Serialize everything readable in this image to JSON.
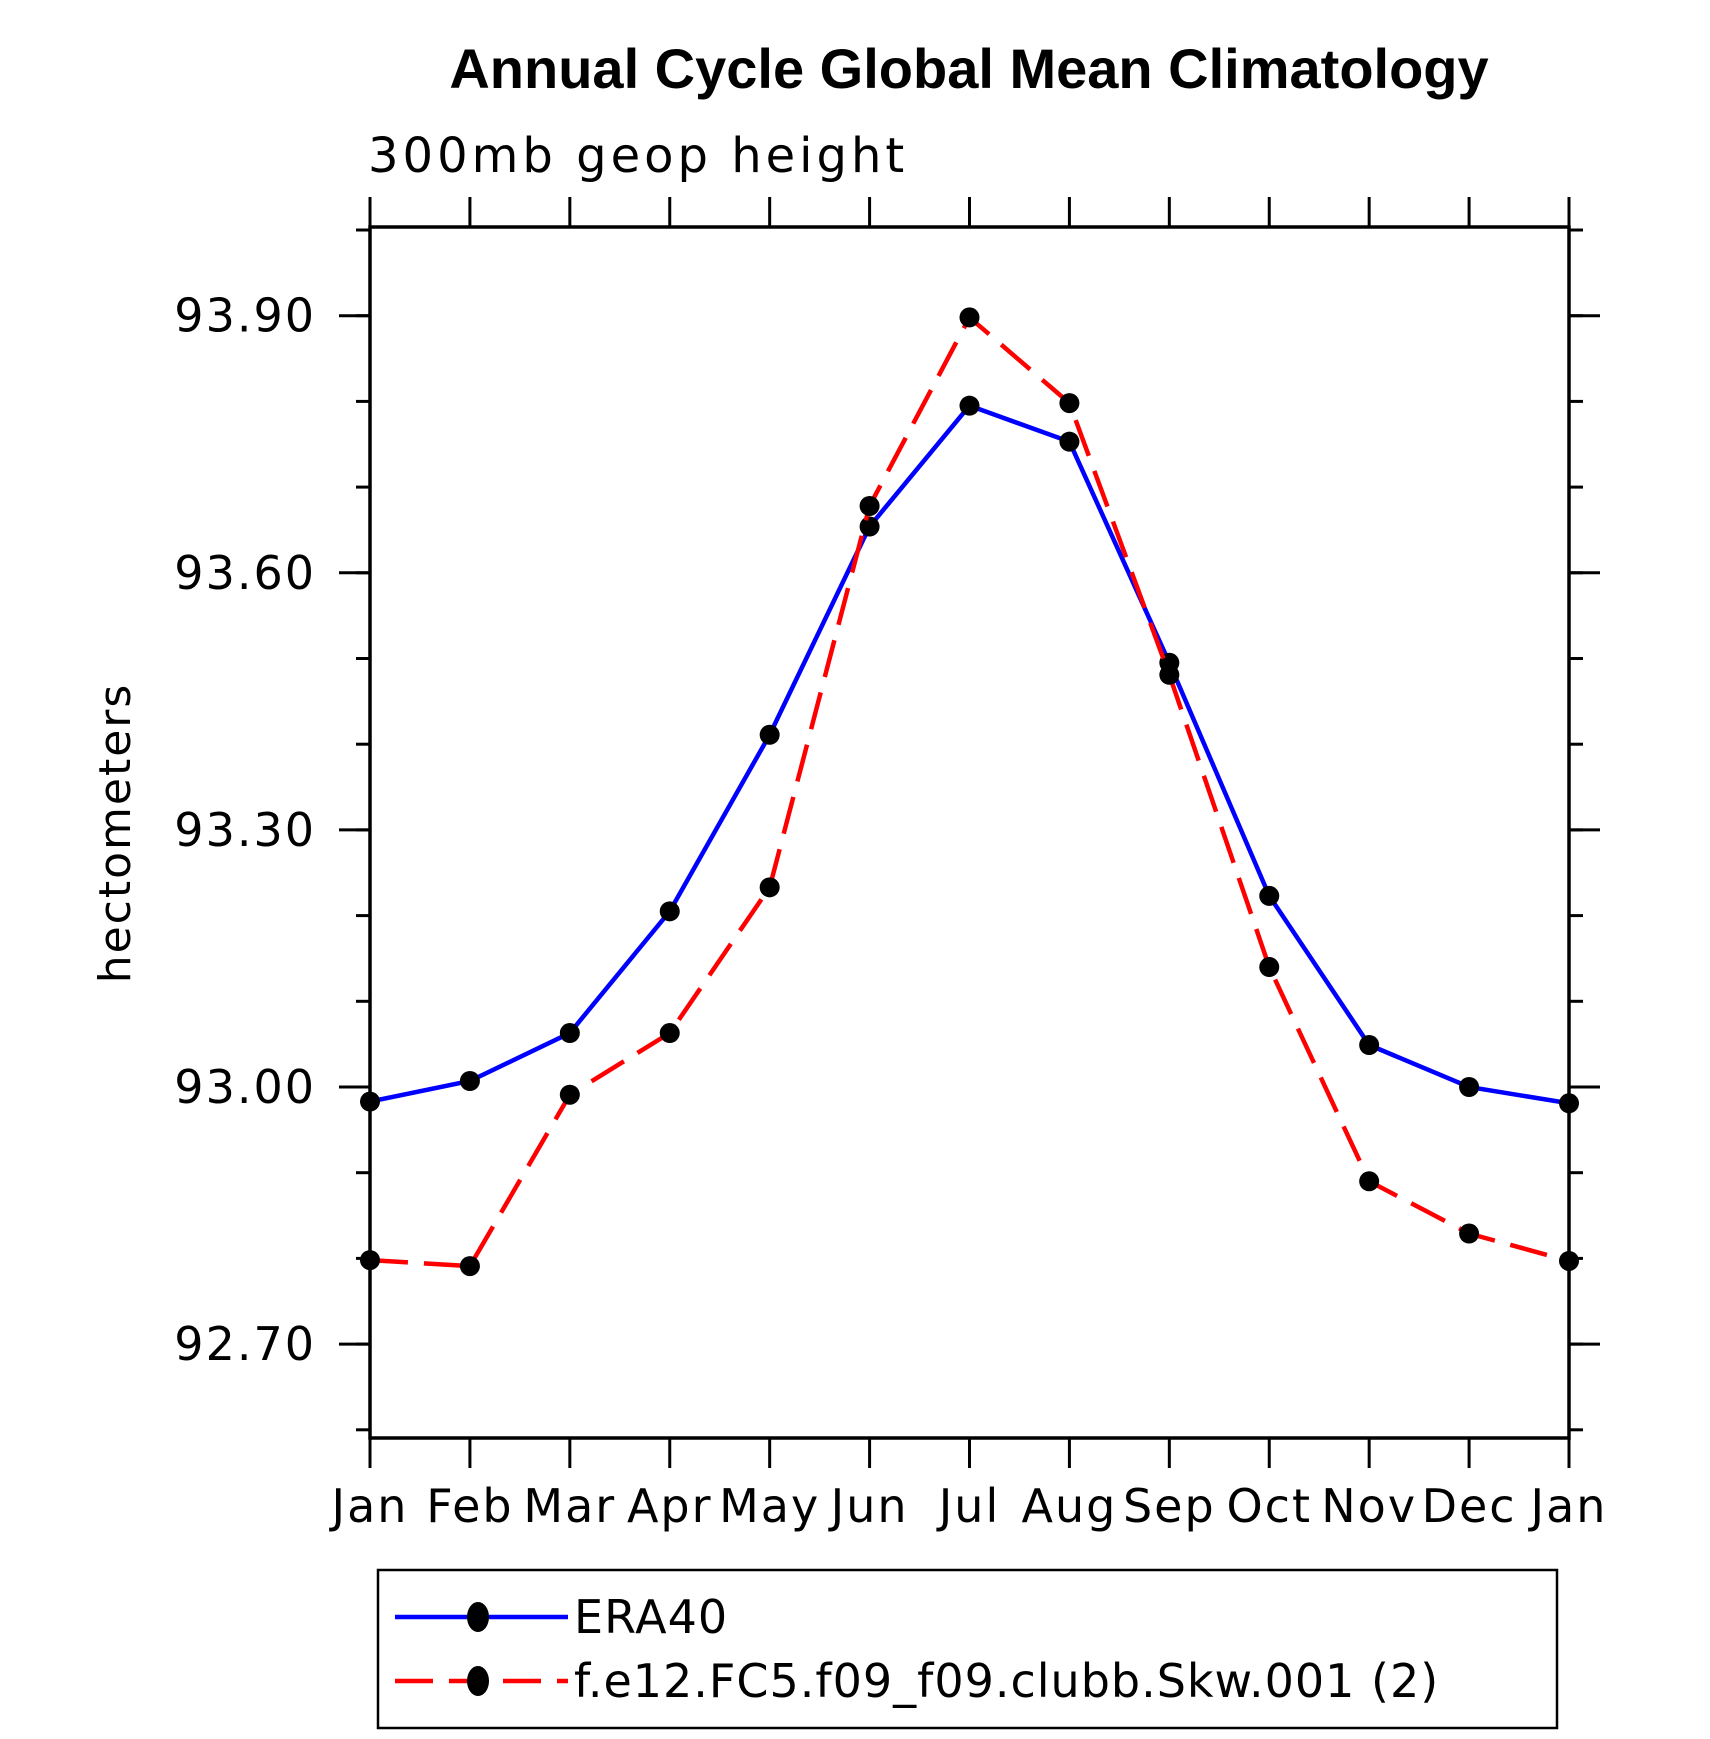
{
  "page": {
    "title": "Annual Cycle Global Mean Climatology",
    "subtitle": "300mb geop height"
  },
  "chart_data": {
    "type": "line",
    "title": "Annual Cycle Global Mean Climatology",
    "subtitle": "300mb geop height",
    "xlabel": "",
    "ylabel": "hectometers",
    "categories": [
      "Jan",
      "Feb",
      "Mar",
      "Apr",
      "May",
      "Jun",
      "Jul",
      "Aug",
      "Sep",
      "Oct",
      "Nov",
      "Dec",
      "Jan"
    ],
    "y_axis": {
      "tick_values": [
        92.7,
        93.0,
        93.3,
        93.6,
        93.9
      ],
      "tick_labels": [
        "92.70",
        "93.00",
        "93.30",
        "93.60",
        "93.90"
      ],
      "minor_step": 0.1,
      "minor_range": [
        92.6,
        94.0
      ],
      "range": [
        92.59,
        94.0
      ]
    },
    "grid": false,
    "legend_position": "bottom-box",
    "series": [
      {
        "name": "ERA40",
        "color": "#0000ff",
        "line_style": "solid",
        "marker": "filled-circle",
        "marker_color": "#000000",
        "values": [
          92.983,
          93.007,
          93.063,
          93.205,
          93.411,
          93.654,
          93.795,
          93.753,
          93.495,
          93.223,
          93.049,
          93.0,
          92.981
        ]
      },
      {
        "name": "f.e12.FC5.f09_f09.clubb.Skw.001 (2)",
        "color": "#ff0000",
        "line_style": "dashed",
        "marker": "filled-circle",
        "marker_color": "#000000",
        "values": [
          92.798,
          92.791,
          92.991,
          93.063,
          93.233,
          93.678,
          93.898,
          93.798,
          93.481,
          93.14,
          92.89,
          92.829,
          92.797
        ]
      }
    ]
  },
  "colors": {
    "axis": "#000000",
    "background": "#ffffff",
    "era40_line": "#0000ff",
    "model_line": "#ff0000",
    "marker": "#000000"
  }
}
